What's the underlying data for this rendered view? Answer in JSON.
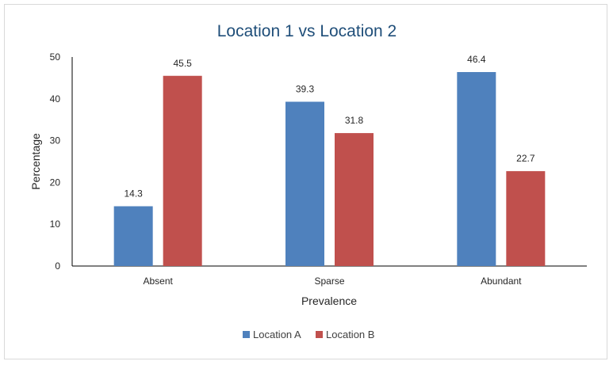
{
  "chart_data": {
    "type": "bar",
    "title": "Location 1 vs Location 2",
    "xlabel": "Prevalence",
    "ylabel": "Percentage",
    "categories": [
      "Absent",
      "Sparse",
      "Abundant"
    ],
    "series": [
      {
        "name": "Location A",
        "values": [
          14.3,
          39.3,
          46.4
        ],
        "color": "#4f81bd"
      },
      {
        "name": "Location B",
        "values": [
          45.5,
          31.8,
          22.7
        ],
        "color": "#c0504d"
      }
    ],
    "ylim": [
      0,
      50
    ],
    "yticks": [
      0,
      10,
      20,
      30,
      40,
      50
    ],
    "grid": false,
    "legend_position": "bottom",
    "data_labels": true
  }
}
